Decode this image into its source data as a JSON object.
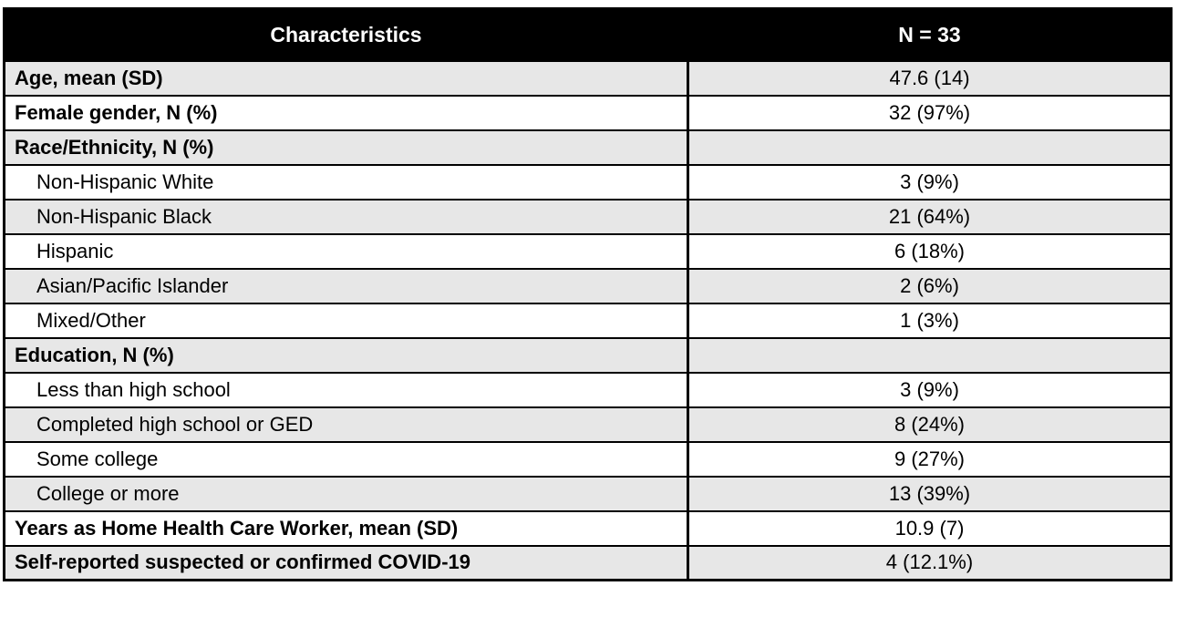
{
  "table": {
    "title_semantic": "participant-characteristics-table",
    "header": {
      "col1": "Characteristics",
      "col2": "N = 33"
    },
    "colors": {
      "header_bg": "#000000",
      "header_text": "#ffffff",
      "shade_bg": "#e7e7e7",
      "border": "#000000"
    },
    "rows": [
      {
        "label": "Age, mean (SD)",
        "value": "47.6 (14)",
        "bold": true,
        "indent": false,
        "shade": true
      },
      {
        "label": "Female gender, N (%)",
        "value": "32 (97%)",
        "bold": true,
        "indent": false,
        "shade": false
      },
      {
        "label": "Race/Ethnicity, N (%)",
        "value": "",
        "bold": true,
        "indent": false,
        "shade": true
      },
      {
        "label": "Non-Hispanic White",
        "value": "3 (9%)",
        "bold": false,
        "indent": true,
        "shade": false
      },
      {
        "label": "Non-Hispanic Black",
        "value": "21 (64%)",
        "bold": false,
        "indent": true,
        "shade": true
      },
      {
        "label": "Hispanic",
        "value": "6 (18%)",
        "bold": false,
        "indent": true,
        "shade": false
      },
      {
        "label": "Asian/Pacific Islander",
        "value": "2 (6%)",
        "bold": false,
        "indent": true,
        "shade": true
      },
      {
        "label": "Mixed/Other",
        "value": "1 (3%)",
        "bold": false,
        "indent": true,
        "shade": false
      },
      {
        "label": "Education, N (%)",
        "value": "",
        "bold": true,
        "indent": false,
        "shade": true
      },
      {
        "label": "Less than high school",
        "value": "3 (9%)",
        "bold": false,
        "indent": true,
        "shade": false
      },
      {
        "label": "Completed high school or GED",
        "value": "8 (24%)",
        "bold": false,
        "indent": true,
        "shade": true
      },
      {
        "label": "Some college",
        "value": "9 (27%)",
        "bold": false,
        "indent": true,
        "shade": false
      },
      {
        "label": "College or more",
        "value": "13 (39%)",
        "bold": false,
        "indent": true,
        "shade": true
      },
      {
        "label": "Years as Home Health Care Worker, mean (SD)",
        "value": "10.9 (7)",
        "bold": true,
        "indent": false,
        "shade": false
      },
      {
        "label": "Self-reported suspected or confirmed COVID-19",
        "value": "4 (12.1%)",
        "bold": true,
        "indent": false,
        "shade": true
      }
    ]
  }
}
